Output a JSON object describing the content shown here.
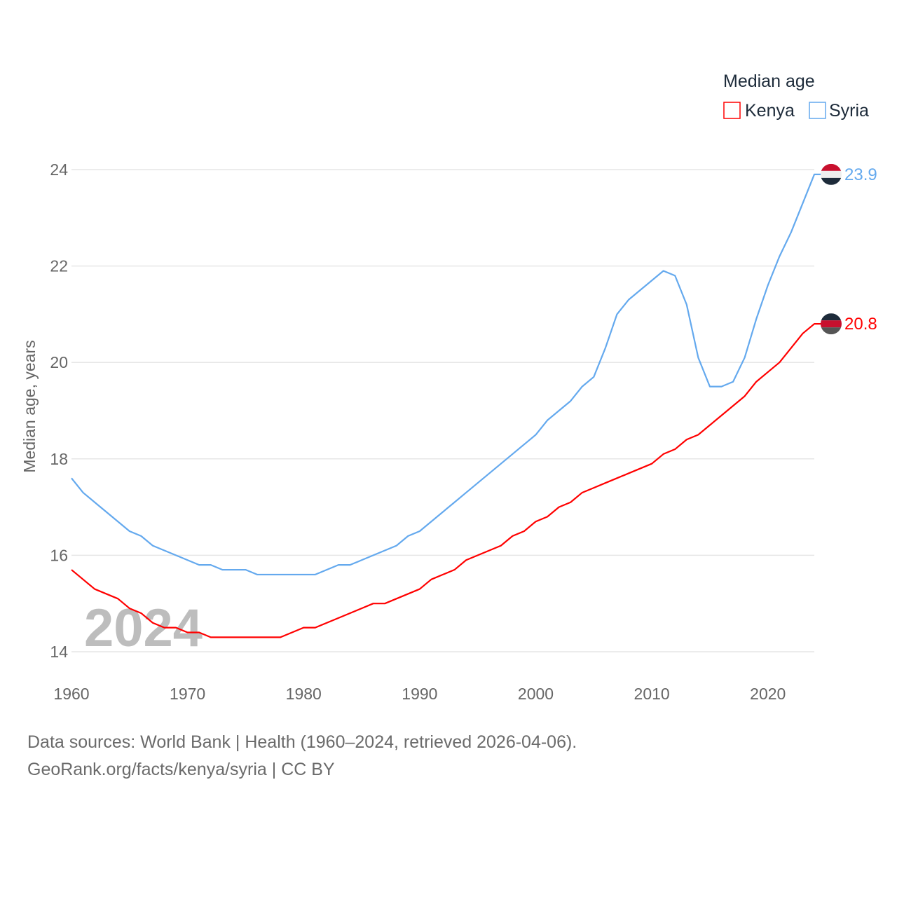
{
  "chart_data": {
    "type": "line",
    "legend_title": "Median age",
    "legend_position": "top-right",
    "ylabel": "Median age, years",
    "xlabel": "",
    "xlim": [
      1960,
      2024
    ],
    "ylim": [
      14,
      24
    ],
    "x_ticks": [
      "1960",
      "1970",
      "1980",
      "1990",
      "2000",
      "2010",
      "2020"
    ],
    "y_ticks": [
      "14",
      "16",
      "18",
      "20",
      "22",
      "24"
    ],
    "grid": true,
    "watermark_year": "2024",
    "x": [
      1960,
      1961,
      1962,
      1963,
      1964,
      1965,
      1966,
      1967,
      1968,
      1969,
      1970,
      1971,
      1972,
      1973,
      1974,
      1975,
      1976,
      1977,
      1978,
      1979,
      1980,
      1981,
      1982,
      1983,
      1984,
      1985,
      1986,
      1987,
      1988,
      1989,
      1990,
      1991,
      1992,
      1993,
      1994,
      1995,
      1996,
      1997,
      1998,
      1999,
      2000,
      2001,
      2002,
      2003,
      2004,
      2005,
      2006,
      2007,
      2008,
      2009,
      2010,
      2011,
      2012,
      2013,
      2014,
      2015,
      2016,
      2017,
      2018,
      2019,
      2020,
      2021,
      2022,
      2023,
      2024
    ],
    "series": [
      {
        "name": "Kenya",
        "color": "#ff0000",
        "end_label": "20.8",
        "values": [
          15.7,
          15.5,
          15.3,
          15.2,
          15.1,
          14.9,
          14.8,
          14.6,
          14.5,
          14.5,
          14.4,
          14.4,
          14.3,
          14.3,
          14.3,
          14.3,
          14.3,
          14.3,
          14.3,
          14.4,
          14.5,
          14.5,
          14.6,
          14.7,
          14.8,
          14.9,
          15.0,
          15.0,
          15.1,
          15.2,
          15.3,
          15.5,
          15.6,
          15.7,
          15.9,
          16.0,
          16.1,
          16.2,
          16.4,
          16.5,
          16.7,
          16.8,
          17.0,
          17.1,
          17.3,
          17.4,
          17.5,
          17.6,
          17.7,
          17.8,
          17.9,
          18.1,
          18.2,
          18.4,
          18.5,
          18.7,
          18.9,
          19.1,
          19.3,
          19.6,
          19.8,
          20.0,
          20.3,
          20.6,
          20.8
        ]
      },
      {
        "name": "Syria",
        "color": "#64a9ee",
        "end_label": "23.9",
        "values": [
          17.6,
          17.3,
          17.1,
          16.9,
          16.7,
          16.5,
          16.4,
          16.2,
          16.1,
          16.0,
          15.9,
          15.8,
          15.8,
          15.7,
          15.7,
          15.7,
          15.6,
          15.6,
          15.6,
          15.6,
          15.6,
          15.6,
          15.7,
          15.8,
          15.8,
          15.9,
          16.0,
          16.1,
          16.2,
          16.4,
          16.5,
          16.7,
          16.9,
          17.1,
          17.3,
          17.5,
          17.7,
          17.9,
          18.1,
          18.3,
          18.5,
          18.8,
          19.0,
          19.2,
          19.5,
          19.7,
          20.3,
          21.0,
          21.3,
          21.5,
          21.7,
          21.9,
          21.8,
          21.2,
          20.1,
          19.5,
          19.5,
          19.6,
          20.1,
          20.9,
          21.6,
          22.2,
          22.7,
          23.3,
          23.9
        ]
      }
    ]
  },
  "footer": {
    "line1": "Data sources: World Bank | Health (1960–2024, retrieved 2026-04-06).",
    "line2": "GeoRank.org/facts/kenya/syria | CC BY"
  }
}
